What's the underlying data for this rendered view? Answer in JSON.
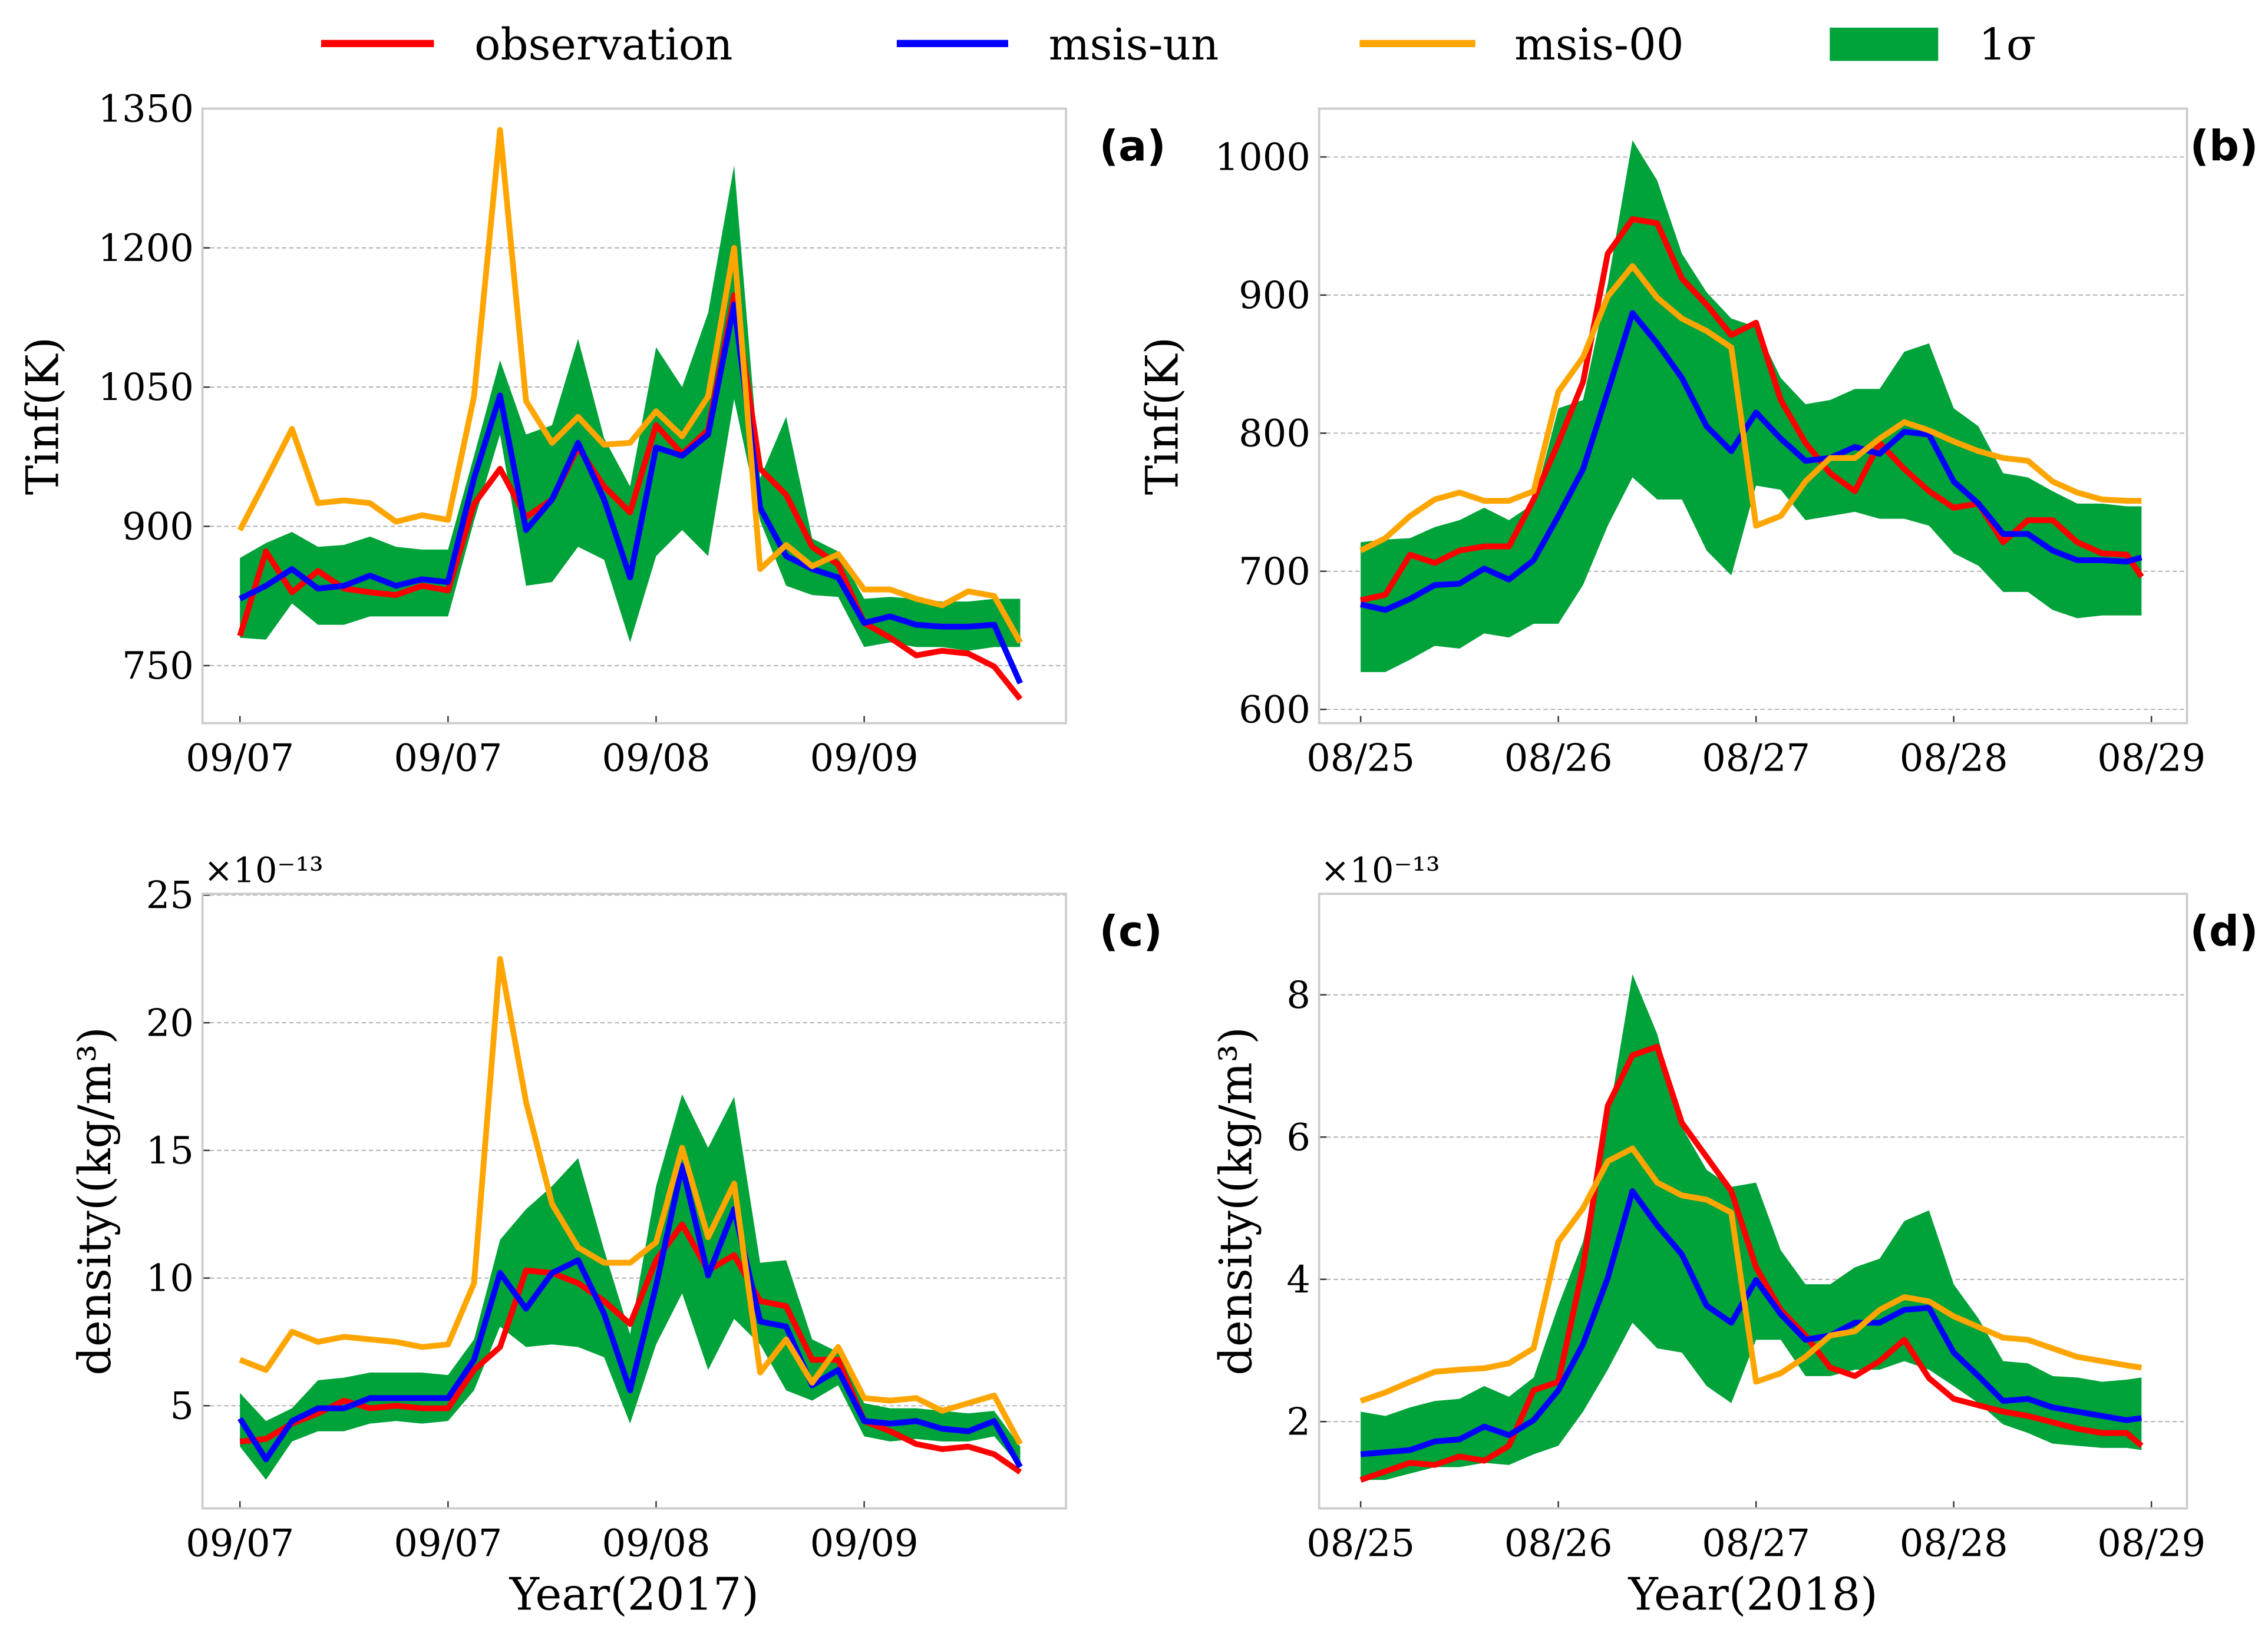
{
  "legend": {
    "items": [
      {
        "label": "observation",
        "color": "#ff0000",
        "kind": "line"
      },
      {
        "label": "msis-un",
        "color": "#0000ff",
        "kind": "line"
      },
      {
        "label": "msis-00",
        "color": "#ffa500",
        "kind": "line"
      },
      {
        "label": "1σ",
        "color": "#00a23a",
        "kind": "patch"
      }
    ]
  },
  "chart_data": [
    {
      "type": "line",
      "panel": "(a)",
      "ylabel": "Tinf(K)",
      "xlabel": "",
      "offset_text": "",
      "ylim": [
        688,
        1350
      ],
      "xlim": [
        -0.18,
        3.97
      ],
      "yticks": [
        750,
        900,
        1050,
        1200,
        1350
      ],
      "xticks": [
        0,
        1,
        2,
        3
      ],
      "xticklabels": [
        "09/07",
        "09/07",
        "09/08",
        "09/09"
      ],
      "grid": "horizontal dashed",
      "x": [
        0,
        0.125,
        0.25,
        0.375,
        0.5,
        0.625,
        0.75,
        0.875,
        1,
        1.125,
        1.25,
        1.375,
        1.5,
        1.625,
        1.75,
        1.875,
        2,
        2.125,
        2.25,
        2.375,
        2.5,
        2.625,
        2.75,
        2.875,
        3,
        3.125,
        3.25,
        3.375,
        3.5,
        3.625,
        3.75
      ],
      "series": [
        {
          "name": "observation",
          "values": [
            782,
            873,
            829,
            852,
            833,
            829,
            826,
            836,
            831,
            924,
            962,
            910,
            929,
            985,
            943,
            915,
            1009,
            978,
            1004,
            1149,
            962,
            934,
            878,
            859,
            796,
            780,
            761,
            766,
            763,
            749,
            714
          ]
        },
        {
          "name": "msis-un",
          "values": [
            822,
            836,
            854,
            833,
            836,
            847,
            836,
            843,
            840,
            952,
            1041,
            896,
            929,
            990,
            929,
            845,
            985,
            976,
            999,
            1139,
            920,
            868,
            854,
            845,
            796,
            803,
            794,
            792,
            792,
            794,
            731
          ]
        },
        {
          "name": "msis-00",
          "values": [
            896,
            950,
            1005,
            925,
            928,
            925,
            905,
            912,
            907,
            1040,
            1327,
            1035,
            990,
            1018,
            988,
            990,
            1024,
            997,
            1040,
            1200,
            854,
            880,
            857,
            870,
            832,
            832,
            822,
            815,
            830,
            825,
            775
          ]
        }
      ],
      "sigma_lower": [
        780,
        778,
        817,
        794,
        794,
        803,
        803,
        803,
        803,
        906,
        999,
        836,
        840,
        878,
        864,
        775,
        868,
        896,
        868,
        1037,
        906,
        836,
        826,
        824,
        770,
        775,
        770,
        770,
        766,
        770,
        770
      ],
      "sigma_upper": [
        866,
        882,
        894,
        878,
        880,
        889,
        878,
        875,
        875,
        976,
        1079,
        999,
        1009,
        1102,
        995,
        943,
        1093,
        1050,
        1130,
        1289,
        952,
        1018,
        887,
        873,
        822,
        824,
        822,
        819,
        819,
        822,
        822
      ]
    },
    {
      "type": "line",
      "panel": "(b)",
      "ylabel": "Tinf(K)",
      "xlabel": "",
      "offset_text": "",
      "ylim": [
        590,
        1035
      ],
      "xlim": [
        -0.21,
        4.18
      ],
      "yticks": [
        600,
        700,
        800,
        900,
        1000
      ],
      "xticks": [
        0,
        1,
        2,
        3,
        4
      ],
      "xticklabels": [
        "08/25",
        "08/26",
        "08/27",
        "08/28",
        "08/29"
      ],
      "grid": "horizontal dashed",
      "x": [
        0,
        0.125,
        0.25,
        0.375,
        0.5,
        0.625,
        0.75,
        0.875,
        1,
        1.125,
        1.25,
        1.375,
        1.5,
        1.625,
        1.75,
        1.875,
        2,
        2.125,
        2.25,
        2.375,
        2.5,
        2.625,
        2.75,
        2.875,
        3,
        3.125,
        3.25,
        3.375,
        3.5,
        3.625,
        3.75,
        3.875,
        3.95
      ],
      "series": [
        {
          "name": "observation",
          "values": [
            679,
            683,
            712,
            706,
            715,
            718,
            718,
            752,
            793,
            837,
            930,
            955,
            952,
            912,
            893,
            871,
            880,
            824,
            793,
            771,
            758,
            793,
            774,
            758,
            746,
            749,
            721,
            737,
            737,
            721,
            713,
            712,
            696
          ]
        },
        {
          "name": "msis-un",
          "values": [
            676,
            672,
            680,
            690,
            691,
            702,
            694,
            708,
            740,
            774,
            830,
            887,
            865,
            840,
            805,
            787,
            815,
            796,
            780,
            782,
            790,
            785,
            801,
            799,
            765,
            749,
            727,
            727,
            715,
            708,
            708,
            707,
            710
          ]
        },
        {
          "name": "msis-00",
          "values": [
            715,
            724,
            740,
            752,
            757,
            751,
            751,
            758,
            830,
            855,
            899,
            921,
            898,
            883,
            874,
            862,
            733,
            740,
            765,
            782,
            782,
            796,
            808,
            802,
            794,
            787,
            782,
            780,
            765,
            757,
            752,
            751,
            751
          ]
        }
      ],
      "sigma_lower": [
        627,
        627,
        636,
        646,
        644,
        655,
        652,
        662,
        662,
        690,
        733,
        768,
        752,
        752,
        715,
        697,
        762,
        759,
        737,
        740,
        743,
        738,
        738,
        733,
        713,
        704,
        685,
        685,
        672,
        666,
        668,
        668,
        668
      ],
      "sigma_upper": [
        721,
        723,
        724,
        732,
        737,
        746,
        737,
        749,
        818,
        824,
        908,
        1012,
        983,
        930,
        902,
        883,
        877,
        840,
        821,
        824,
        832,
        832,
        859,
        865,
        818,
        805,
        771,
        768,
        758,
        749,
        749,
        747,
        747
      ]
    },
    {
      "type": "line",
      "panel": "(c)",
      "ylabel": "density((kg/m³)",
      "xlabel": "Year(2017)",
      "offset_text": "×10⁻¹³",
      "ylim": [
        0.98,
        25.05
      ],
      "xlim": [
        -0.18,
        3.97
      ],
      "yticks": [
        5,
        10,
        15,
        20,
        25
      ],
      "xticks": [
        0,
        1,
        2,
        3
      ],
      "xticklabels": [
        "09/07",
        "09/07",
        "09/08",
        "09/09"
      ],
      "grid": "horizontal dashed",
      "x": [
        0,
        0.125,
        0.25,
        0.375,
        0.5,
        0.625,
        0.75,
        0.875,
        1,
        1.125,
        1.25,
        1.375,
        1.5,
        1.625,
        1.75,
        1.875,
        2,
        2.125,
        2.25,
        2.375,
        2.5,
        2.625,
        2.75,
        2.875,
        3,
        3.125,
        3.25,
        3.375,
        3.5,
        3.625,
        3.75
      ],
      "series": [
        {
          "name": "observation",
          "values": [
            3.6,
            3.7,
            4.3,
            4.7,
            5.2,
            4.9,
            5.0,
            4.9,
            4.9,
            6.4,
            7.3,
            10.3,
            10.2,
            9.8,
            9.1,
            8.2,
            10.7,
            12.1,
            10.3,
            10.9,
            9.1,
            8.9,
            6.8,
            6.8,
            4.4,
            4.0,
            3.5,
            3.3,
            3.4,
            3.1,
            2.4
          ]
        },
        {
          "name": "msis-un",
          "values": [
            4.5,
            2.9,
            4.4,
            4.9,
            4.9,
            5.3,
            5.3,
            5.3,
            5.3,
            6.8,
            10.2,
            8.8,
            10.2,
            10.7,
            8.6,
            5.6,
            9.7,
            14.4,
            10.1,
            12.7,
            8.3,
            8.1,
            5.8,
            6.4,
            4.4,
            4.3,
            4.4,
            4.1,
            4.0,
            4.4,
            2.6
          ]
        },
        {
          "name": "msis-00",
          "values": [
            6.8,
            6.4,
            7.9,
            7.5,
            7.7,
            7.6,
            7.5,
            7.3,
            7.4,
            9.8,
            22.5,
            16.9,
            12.9,
            11.2,
            10.6,
            10.6,
            11.4,
            15.1,
            11.6,
            13.7,
            6.3,
            7.6,
            5.9,
            7.3,
            5.3,
            5.2,
            5.3,
            4.8,
            5.1,
            5.4,
            3.5
          ]
        }
      ],
      "sigma_lower": [
        3.4,
        2.1,
        3.6,
        4.0,
        4.0,
        4.3,
        4.4,
        4.3,
        4.4,
        5.6,
        8.1,
        7.3,
        7.4,
        7.3,
        6.9,
        4.3,
        7.4,
        9.4,
        6.4,
        8.4,
        7.4,
        5.6,
        5.2,
        5.8,
        3.8,
        3.6,
        3.7,
        3.6,
        3.6,
        3.8,
        2.6
      ],
      "sigma_upper": [
        5.5,
        4.4,
        4.9,
        6.0,
        6.1,
        6.3,
        6.3,
        6.3,
        6.2,
        7.6,
        11.5,
        12.7,
        13.6,
        14.7,
        11.1,
        7.8,
        13.6,
        17.2,
        15.1,
        17.1,
        10.6,
        10.7,
        7.6,
        7.1,
        5.1,
        4.9,
        4.9,
        4.8,
        4.7,
        4.8,
        3.4
      ]
    },
    {
      "type": "line",
      "panel": "(d)",
      "ylabel": "density((kg/m³)",
      "xlabel": "Year(2018)",
      "offset_text": "×10⁻¹³",
      "ylim": [
        0.78,
        9.42
      ],
      "xlim": [
        -0.21,
        4.18
      ],
      "yticks": [
        2,
        4,
        6,
        8
      ],
      "xticks": [
        0,
        1,
        2,
        3,
        4
      ],
      "xticklabels": [
        "08/25",
        "08/26",
        "08/27",
        "08/28",
        "08/29"
      ],
      "grid": "horizontal dashed",
      "x": [
        0,
        0.125,
        0.25,
        0.375,
        0.5,
        0.625,
        0.75,
        0.875,
        1,
        1.125,
        1.25,
        1.375,
        1.5,
        1.625,
        1.75,
        1.875,
        2,
        2.125,
        2.25,
        2.375,
        2.5,
        2.625,
        2.75,
        2.875,
        3,
        3.125,
        3.25,
        3.375,
        3.5,
        3.625,
        3.75,
        3.875,
        3.95
      ],
      "series": [
        {
          "name": "observation",
          "values": [
            1.18,
            1.3,
            1.42,
            1.39,
            1.51,
            1.45,
            1.66,
            2.44,
            2.56,
            4.17,
            6.44,
            7.15,
            7.27,
            6.2,
            5.72,
            5.24,
            4.17,
            3.57,
            3.21,
            2.76,
            2.64,
            2.85,
            3.15,
            2.61,
            2.32,
            2.23,
            2.14,
            2.08,
            1.99,
            1.9,
            1.84,
            1.84,
            1.66
          ]
        },
        {
          "name": "msis-un",
          "values": [
            1.54,
            1.57,
            1.6,
            1.72,
            1.75,
            1.93,
            1.81,
            2.02,
            2.44,
            3.09,
            4.02,
            5.24,
            4.76,
            4.35,
            3.63,
            3.39,
            3.99,
            3.51,
            3.15,
            3.21,
            3.39,
            3.39,
            3.57,
            3.6,
            2.97,
            2.64,
            2.29,
            2.32,
            2.2,
            2.14,
            2.08,
            2.02,
            2.05
          ]
        },
        {
          "name": "msis-00",
          "values": [
            2.29,
            2.41,
            2.56,
            2.7,
            2.73,
            2.75,
            2.82,
            3.03,
            4.53,
            5.0,
            5.66,
            5.84,
            5.36,
            5.18,
            5.12,
            4.94,
            2.56,
            2.68,
            2.91,
            3.21,
            3.27,
            3.57,
            3.75,
            3.69,
            3.48,
            3.33,
            3.18,
            3.15,
            3.03,
            2.91,
            2.85,
            2.79,
            2.76
          ]
        }
      ],
      "sigma_lower": [
        1.18,
        1.18,
        1.27,
        1.36,
        1.36,
        1.42,
        1.39,
        1.54,
        1.66,
        2.14,
        2.73,
        3.39,
        3.03,
        2.97,
        2.5,
        2.26,
        3.15,
        3.15,
        2.64,
        2.64,
        2.73,
        2.73,
        2.85,
        2.73,
        2.5,
        2.26,
        1.96,
        1.84,
        1.69,
        1.66,
        1.63,
        1.63,
        1.6
      ],
      "sigma_upper": [
        2.14,
        2.08,
        2.2,
        2.29,
        2.32,
        2.5,
        2.35,
        2.62,
        3.63,
        4.53,
        6.2,
        8.29,
        7.45,
        6.14,
        5.54,
        5.3,
        5.36,
        4.41,
        3.93,
        3.93,
        4.17,
        4.29,
        4.82,
        4.97,
        3.93,
        3.45,
        2.85,
        2.82,
        2.64,
        2.62,
        2.56,
        2.59,
        2.62
      ]
    }
  ]
}
